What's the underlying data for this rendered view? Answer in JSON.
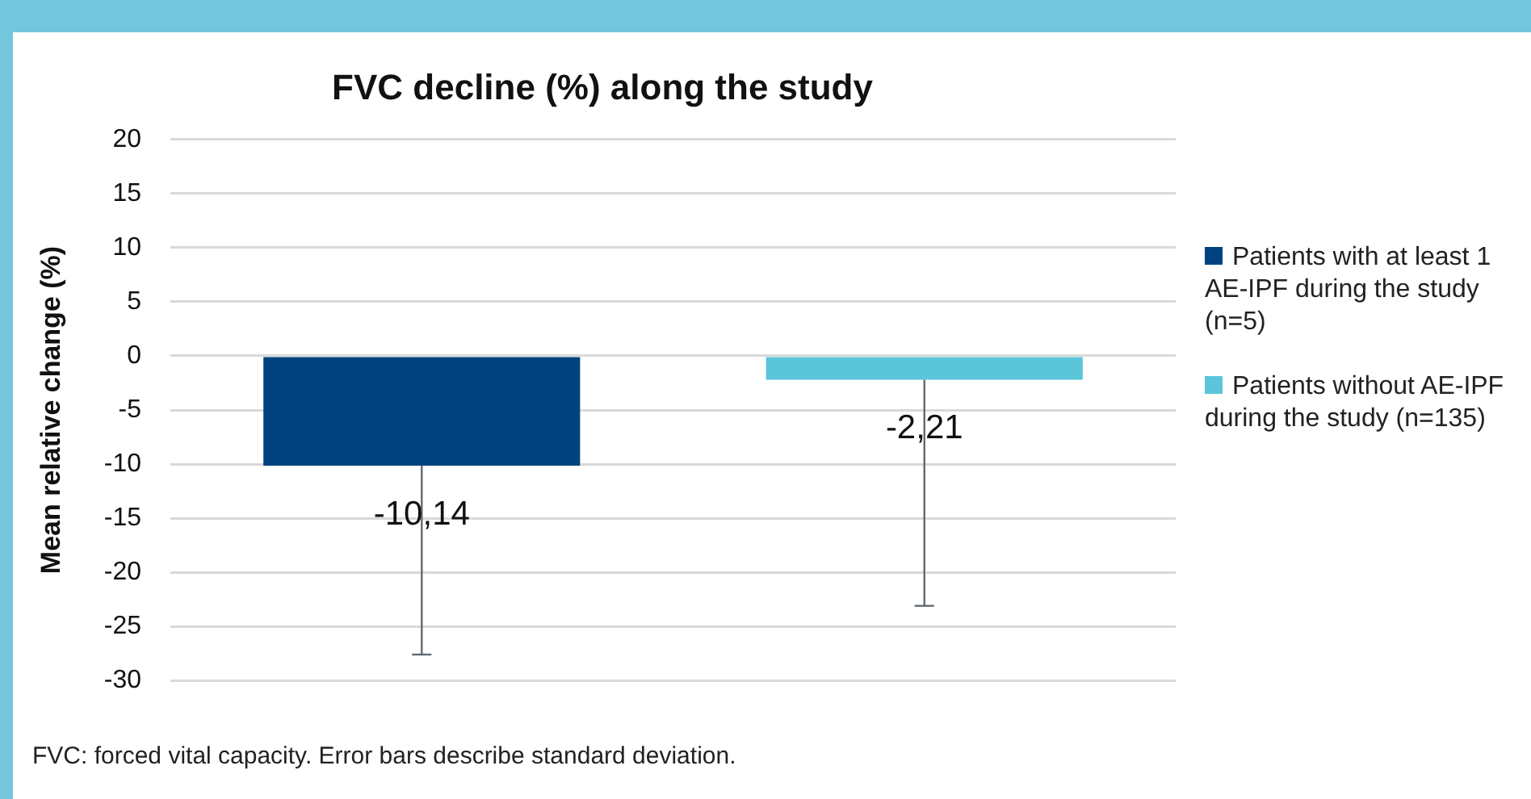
{
  "chart_data": {
    "type": "bar",
    "title": "FVC decline (%) along the study",
    "ylabel": "Mean relative change (%)",
    "categories": [
      null,
      null
    ],
    "series": [
      {
        "name": "Patients with at least 1 AE-IPF during the study (n=5)",
        "color": "#00427f",
        "values": [
          -10.14,
          null
        ],
        "value_labels": [
          "-10,14",
          null
        ],
        "errors": [
          [
            -27.6,
            -10.14
          ],
          null
        ]
      },
      {
        "name": "Patients without AE-IPF during the study (n=135)",
        "color": "#5bc5d9",
        "values": [
          null,
          -2.21
        ],
        "value_labels": [
          null,
          "-2,21"
        ],
        "errors": [
          null,
          [
            -23.1,
            -2.21
          ]
        ]
      }
    ],
    "ylim": [
      -30,
      20
    ],
    "yticks": [
      -30,
      -25,
      -20,
      -15,
      -10,
      -5,
      0,
      5,
      10,
      15,
      20
    ],
    "grid": "y",
    "legend": "right",
    "annotations": [
      "FVC: forced vital capacity. Error bars describe standard deviation."
    ]
  }
}
